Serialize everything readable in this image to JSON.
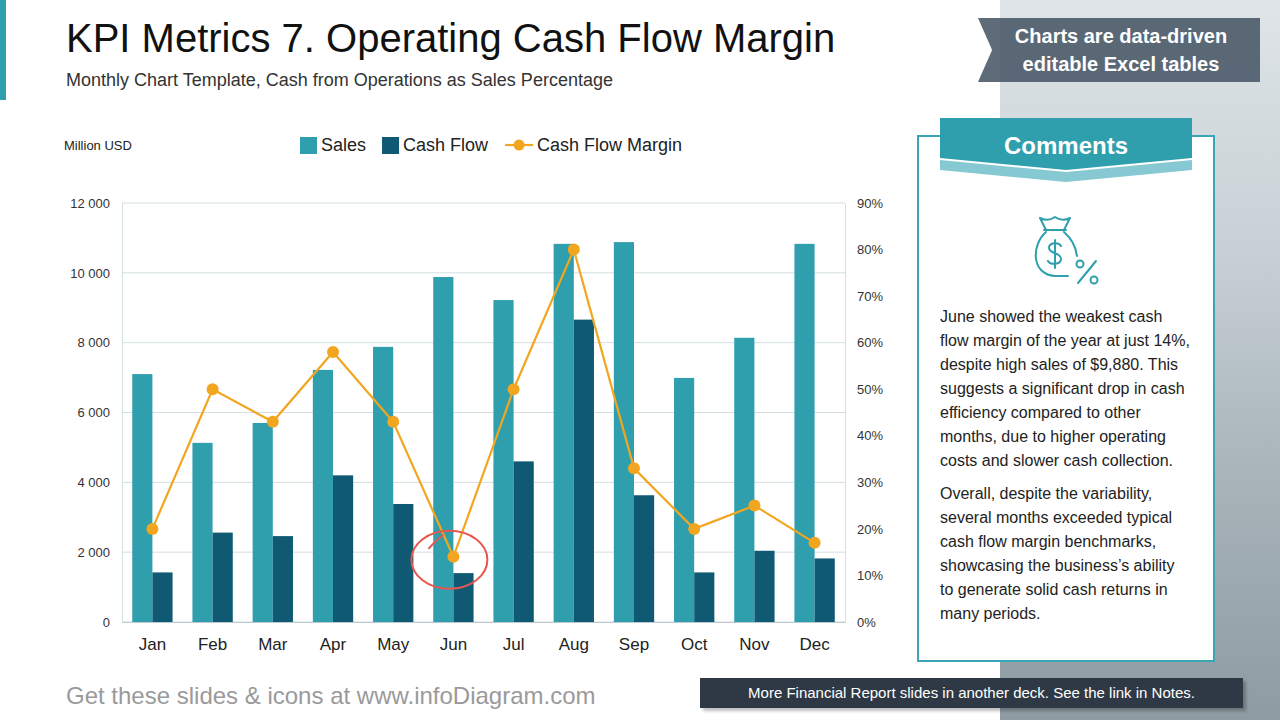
{
  "header": {
    "title": "KPI Metrics 7. Operating Cash Flow Margin",
    "subtitle": "Monthly Chart Template, Cash from Operations as Sales Percentage",
    "badge": "Charts are data-driven editable Excel tables"
  },
  "chart_data": {
    "type": "bar",
    "ylabel": "Million USD",
    "categories": [
      "Jan",
      "Feb",
      "Mar",
      "Apr",
      "May",
      "Jun",
      "Jul",
      "Aug",
      "Sep",
      "Oct",
      "Nov",
      "Dec"
    ],
    "series": [
      {
        "name": "Sales",
        "type": "bar",
        "color": "#2f9fae",
        "values": [
          7100,
          5130,
          5700,
          7220,
          7880,
          9880,
          9220,
          10830,
          10880,
          6990,
          8140,
          10830
        ]
      },
      {
        "name": "Cash Flow",
        "type": "bar",
        "color": "#0f5a72",
        "values": [
          1420,
          2560,
          2460,
          4200,
          3380,
          1400,
          4600,
          8660,
          3630,
          1420,
          2040,
          1820
        ]
      },
      {
        "name": "Cash Flow Margin",
        "type": "line",
        "axis": "y2",
        "color": "#f2a620",
        "marker": "circle",
        "values": [
          20,
          50,
          43,
          58,
          43,
          14,
          50,
          80,
          33,
          20,
          25,
          17
        ]
      }
    ],
    "ylim": [
      0,
      12000
    ],
    "yticks": [
      0,
      {
        "value": 2000,
        "label": "2 000"
      },
      {
        "value": 4000,
        "label": "4 000"
      },
      {
        "value": 6000,
        "label": "6 000"
      },
      {
        "value": 8000,
        "label": "8 000"
      },
      {
        "value": 10000,
        "label": "10 000"
      },
      {
        "value": 12000,
        "label": "12 000"
      }
    ],
    "y2lim": [
      0,
      90
    ],
    "y2ticks": [
      {
        "value": 0,
        "label": "0%"
      },
      {
        "value": 10,
        "label": "10%"
      },
      {
        "value": 20,
        "label": "20%"
      },
      {
        "value": 30,
        "label": "30%"
      },
      {
        "value": 40,
        "label": "40%"
      },
      {
        "value": 50,
        "label": "50%"
      },
      {
        "value": 60,
        "label": "60%"
      },
      {
        "value": 70,
        "label": "70%"
      },
      {
        "value": 80,
        "label": "80%"
      },
      {
        "value": 90,
        "label": "90%"
      }
    ],
    "grid": true,
    "legend": "top"
  },
  "comments": {
    "title": "Comments",
    "paragraphs": [
      "June showed the weakest cash flow margin of the year at just 14%, despite high sales of $9,880. This suggests a significant drop in cash efficiency compared to other months, due to higher operating costs and slower cash collection.",
      "Overall, despite the variability, several months exceeded typical cash flow margin benchmarks, showcasing the business’s ability to generate solid cash returns in many periods."
    ]
  },
  "footer": {
    "left": "Get these slides & icons at www.infoDiagram.com",
    "right": "More Financial Report slides in another deck. See the link in Notes."
  }
}
